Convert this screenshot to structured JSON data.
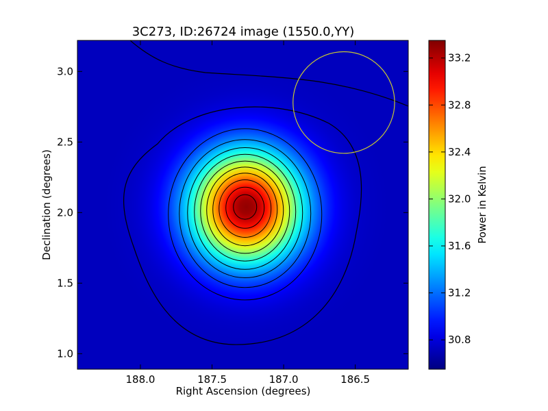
{
  "chart_data": {
    "type": "heatmap",
    "title": "3C273, ID:26724 image (1550.0,YY)",
    "xlabel": "Right Ascension (degrees)",
    "ylabel": "Declination (degrees)",
    "colorbar_label": "Power in Kelvin",
    "x_axis": {
      "range": [
        188.44,
        186.13
      ],
      "inverted": true,
      "ticks": [
        188.0,
        187.5,
        187.0,
        186.5
      ],
      "tick_labels": [
        "188.0",
        "187.5",
        "187.0",
        "186.5"
      ]
    },
    "y_axis": {
      "range": [
        0.89,
        3.22
      ],
      "ticks": [
        1.0,
        1.5,
        2.0,
        2.5,
        3.0
      ],
      "tick_labels": [
        "1.0",
        "1.5",
        "2.0",
        "2.5",
        "3.0"
      ]
    },
    "colorbar": {
      "range": [
        30.55,
        33.35
      ],
      "ticks": [
        30.8,
        31.2,
        31.6,
        32.0,
        32.4,
        32.8,
        33.2
      ],
      "tick_labels": [
        "30.8",
        "31.2",
        "31.6",
        "32.0",
        "32.4",
        "32.8",
        "33.2"
      ],
      "colormap": "jet"
    },
    "peak": {
      "ra": 187.26,
      "dec": 2.04,
      "value": 33.3
    },
    "beam_circle": {
      "ra": 186.58,
      "dec": 2.78,
      "radius_deg": 0.36,
      "color": "#c8c832"
    },
    "contour_color": "#000000",
    "grid": false
  }
}
